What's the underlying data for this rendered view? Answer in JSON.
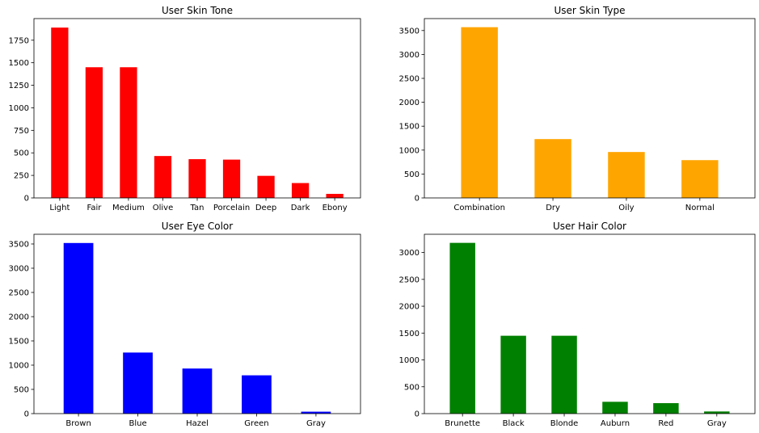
{
  "chart_data": [
    {
      "type": "bar",
      "title": "User Skin Tone",
      "color": "#ff0000",
      "categories": [
        "Light",
        "Fair",
        "Medium",
        "Olive",
        "Tan",
        "Porcelain",
        "Deep",
        "Dark",
        "Ebony"
      ],
      "values": [
        1890,
        1450,
        1450,
        465,
        430,
        425,
        245,
        165,
        45
      ],
      "ylim": [
        0,
        1990
      ],
      "yticks": [
        0,
        250,
        500,
        750,
        1000,
        1250,
        1500,
        1750
      ]
    },
    {
      "type": "bar",
      "title": "User Skin Type",
      "color": "#ffa500",
      "categories": [
        "Combination",
        "Dry",
        "Oily",
        "Normal"
      ],
      "values": [
        3570,
        1230,
        960,
        790
      ],
      "ylim": [
        0,
        3750
      ],
      "yticks": [
        0,
        500,
        1000,
        1500,
        2000,
        2500,
        3000,
        3500
      ]
    },
    {
      "type": "bar",
      "title": "User Eye Color",
      "color": "#0000ff",
      "categories": [
        "Brown",
        "Blue",
        "Hazel",
        "Green",
        "Gray"
      ],
      "values": [
        3520,
        1260,
        930,
        790,
        40
      ],
      "ylim": [
        0,
        3700
      ],
      "yticks": [
        0,
        500,
        1000,
        1500,
        2000,
        2500,
        3000,
        3500
      ]
    },
    {
      "type": "bar",
      "title": "User Hair Color",
      "color": "#008000",
      "categories": [
        "Brunette",
        "Black",
        "Blonde",
        "Auburn",
        "Red",
        "Gray"
      ],
      "values": [
        3180,
        1450,
        1450,
        220,
        195,
        40
      ],
      "ylim": [
        0,
        3340
      ],
      "yticks": [
        0,
        500,
        1000,
        1500,
        2000,
        2500,
        3000
      ]
    }
  ]
}
